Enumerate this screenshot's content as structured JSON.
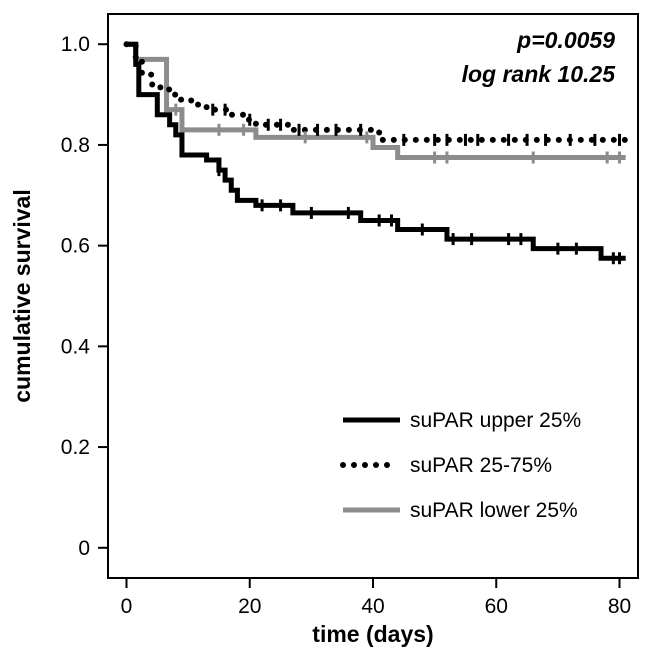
{
  "chart_data": {
    "type": "line",
    "subtype": "kaplan-meier step",
    "annotations": [
      "p=0.0059",
      "log rank 10.25"
    ],
    "xlabel": "time (days)",
    "ylabel": "cumulative survival",
    "xlim": [
      -3,
      83
    ],
    "ylim": [
      -0.06,
      1.06
    ],
    "xticks": [
      0,
      20,
      40,
      60,
      80
    ],
    "xtick_labels": [
      "0",
      "20",
      "40",
      "60",
      "80"
    ],
    "yticks": [
      0,
      0.2,
      0.4,
      0.6,
      0.8,
      1.0
    ],
    "ytick_labels": [
      "0",
      "0.2",
      "0.4",
      "0.6",
      "0.8",
      "1.0"
    ],
    "grid": false,
    "legend_position": "bottom-right",
    "series": [
      {
        "name": "suPAR upper 25%",
        "color": "#000000",
        "style": "solid",
        "x": [
          0,
          1.5,
          2,
          5,
          7,
          8,
          9,
          13,
          15,
          16,
          17,
          18,
          21,
          27,
          38,
          44,
          52,
          66,
          77,
          81
        ],
        "y": [
          1.0,
          0.96,
          0.9,
          0.86,
          0.84,
          0.82,
          0.78,
          0.77,
          0.75,
          0.73,
          0.71,
          0.69,
          0.68,
          0.665,
          0.65,
          0.632,
          0.613,
          0.594,
          0.575,
          0.575
        ],
        "censored": [
          [
            15,
            0.75
          ],
          [
            22,
            0.68
          ],
          [
            25,
            0.68
          ],
          [
            30,
            0.665
          ],
          [
            36,
            0.665
          ],
          [
            41,
            0.65
          ],
          [
            43,
            0.65
          ],
          [
            48,
            0.632
          ],
          [
            53,
            0.613
          ],
          [
            56,
            0.613
          ],
          [
            62,
            0.613
          ],
          [
            64,
            0.613
          ],
          [
            70,
            0.594
          ],
          [
            73,
            0.594
          ],
          [
            79,
            0.575
          ],
          [
            80,
            0.575
          ]
        ]
      },
      {
        "name": "suPAR 25-75%",
        "color": "#000000",
        "style": "dotted",
        "x": [
          0,
          1.5,
          2.5,
          4,
          5.5,
          7,
          8.5,
          10.5,
          13,
          17,
          19,
          21,
          27,
          41,
          81
        ],
        "y": [
          1.0,
          0.97,
          0.94,
          0.92,
          0.91,
          0.9,
          0.89,
          0.88,
          0.87,
          0.86,
          0.85,
          0.84,
          0.83,
          0.81,
          0.81
        ],
        "censored": [
          [
            14,
            0.87
          ],
          [
            16,
            0.87
          ],
          [
            20,
            0.85
          ],
          [
            23,
            0.84
          ],
          [
            25,
            0.84
          ],
          [
            28,
            0.83
          ],
          [
            31,
            0.83
          ],
          [
            34,
            0.83
          ],
          [
            38,
            0.83
          ],
          [
            45,
            0.81
          ],
          [
            50,
            0.81
          ],
          [
            52,
            0.81
          ],
          [
            55,
            0.81
          ],
          [
            57,
            0.81
          ],
          [
            62,
            0.81
          ],
          [
            65,
            0.81
          ],
          [
            68,
            0.81
          ],
          [
            72,
            0.81
          ],
          [
            76,
            0.81
          ],
          [
            80,
            0.81
          ]
        ]
      },
      {
        "name": "suPAR lower 25%",
        "color": "#8c8c8c",
        "style": "solid",
        "x": [
          0,
          1.5,
          6.5,
          9,
          21,
          40,
          44,
          81
        ],
        "y": [
          1.0,
          0.97,
          0.87,
          0.83,
          0.815,
          0.795,
          0.775,
          0.775
        ],
        "censored": [
          [
            8,
            0.87
          ],
          [
            15,
            0.83
          ],
          [
            19,
            0.83
          ],
          [
            29,
            0.815
          ],
          [
            39,
            0.815
          ],
          [
            50,
            0.775
          ],
          [
            52,
            0.775
          ],
          [
            66,
            0.775
          ],
          [
            78,
            0.775
          ],
          [
            80,
            0.775
          ]
        ]
      }
    ]
  }
}
